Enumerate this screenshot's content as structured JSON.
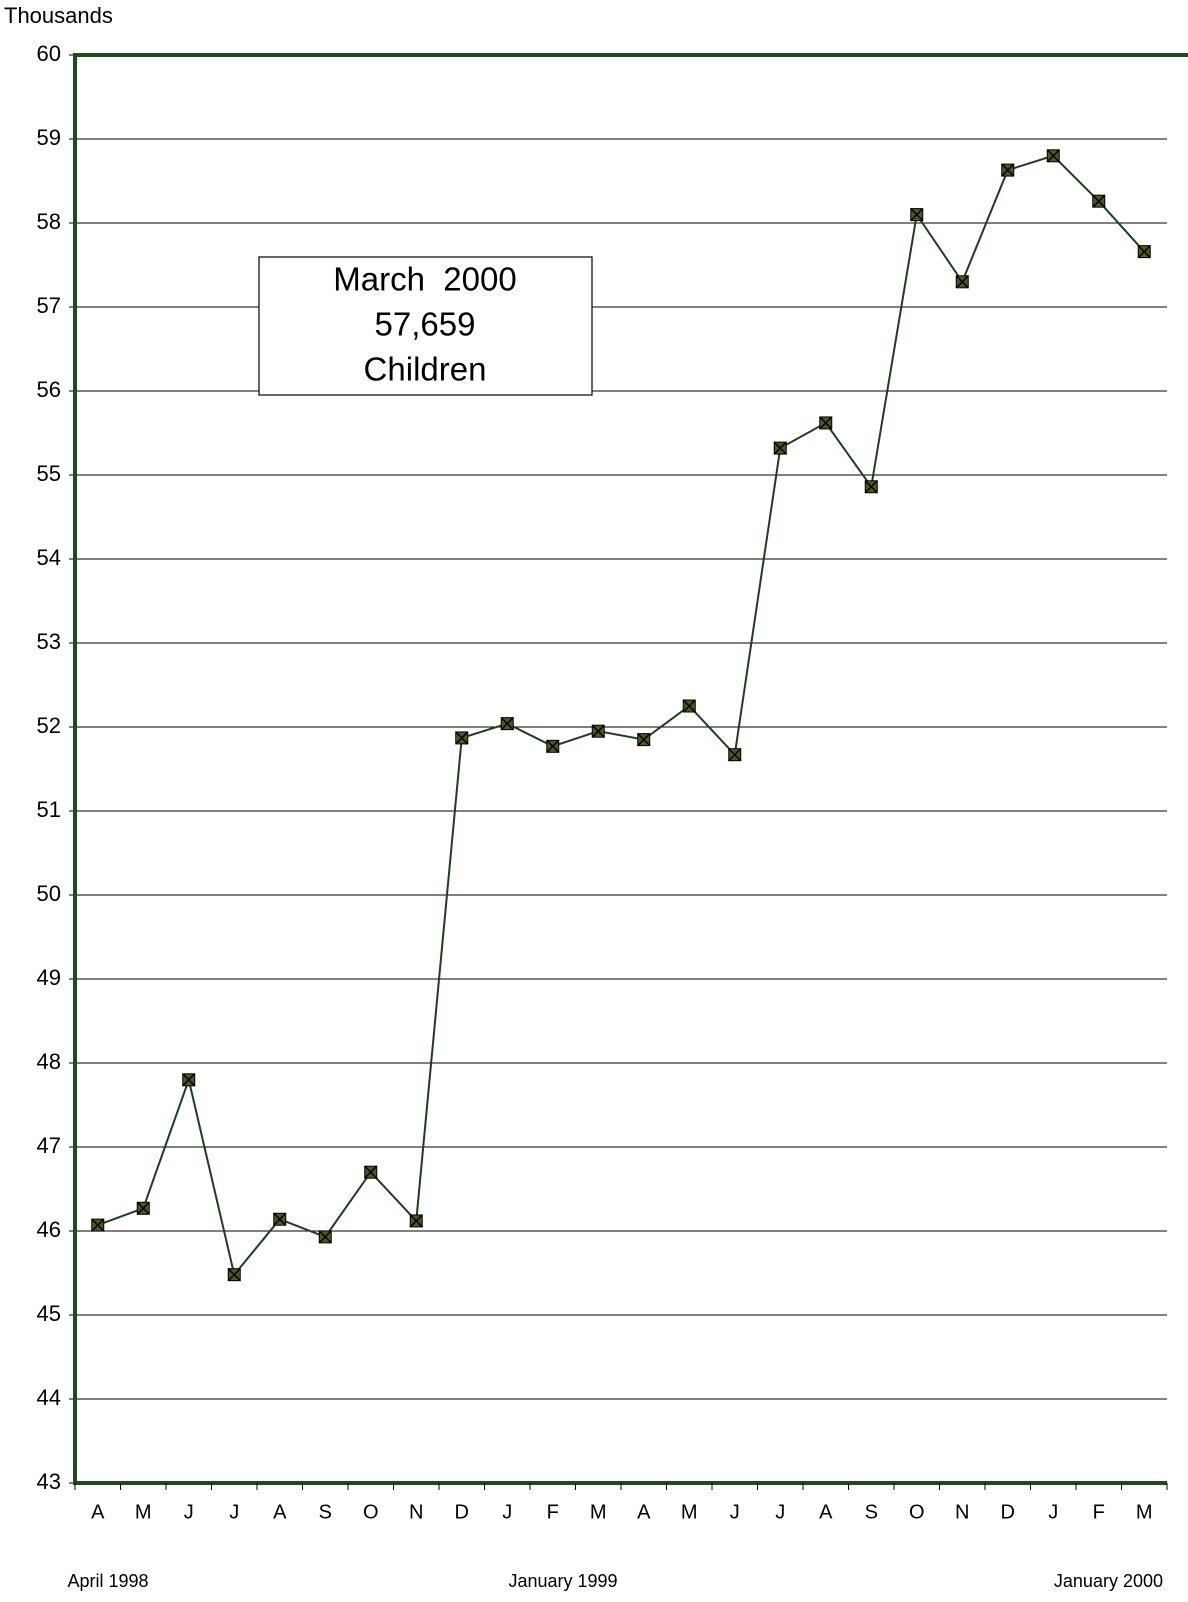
{
  "chart_data": {
    "type": "line",
    "y_axis_label": "Thousands",
    "categories": [
      "A",
      "M",
      "J",
      "J",
      "A",
      "S",
      "O",
      "N",
      "D",
      "J",
      "F",
      "M",
      "A",
      "M",
      "J",
      "J",
      "A",
      "S",
      "O",
      "N",
      "D",
      "J",
      "F",
      "M"
    ],
    "group_labels": [
      "April 1998",
      "January 1999",
      "January 2000"
    ],
    "values": [
      46.07,
      46.27,
      47.8,
      45.48,
      46.14,
      45.93,
      46.7,
      46.12,
      51.87,
      52.04,
      51.77,
      51.95,
      51.85,
      52.25,
      51.67,
      55.32,
      55.62,
      54.86,
      58.1,
      57.3,
      58.63,
      58.8,
      58.26,
      57.659
    ],
    "color": "#1f3d1f",
    "marker_color": "#4d5a1c",
    "axis_color": "#1e4a1e",
    "ylim": [
      43,
      60
    ],
    "yticks": [
      43,
      44,
      45,
      46,
      47,
      48,
      49,
      50,
      51,
      52,
      53,
      54,
      55,
      56,
      57,
      58,
      59,
      60
    ],
    "grid": true,
    "annotation": [
      "March  2000",
      "57,659",
      "Children"
    ]
  }
}
